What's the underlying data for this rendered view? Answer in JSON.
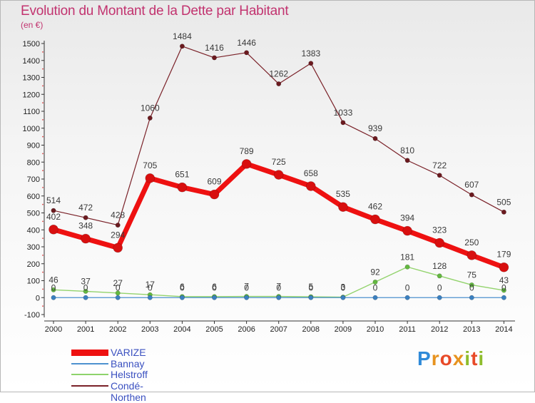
{
  "title": "Evolution du Montant de la Dette par Habitant",
  "unit_label": "(en €)",
  "logo_text": "Proxiti",
  "chart_data": {
    "type": "line",
    "x": [
      "2000",
      "2001",
      "2002",
      "2003",
      "2004",
      "2005",
      "2006",
      "2007",
      "2008",
      "2009",
      "2010",
      "2011",
      "2012",
      "2013",
      "2014"
    ],
    "ylim": [
      -100,
      1500
    ],
    "yticks": [
      -100,
      0,
      100,
      200,
      300,
      400,
      500,
      600,
      700,
      800,
      900,
      1000,
      1100,
      1200,
      1300,
      1400,
      1500
    ],
    "grid": false,
    "legend_position": "bottom-left",
    "series": [
      {
        "name": "VARIZE",
        "color": "#ee1111",
        "values": [
          402,
          348,
          294,
          705,
          651,
          609,
          789,
          725,
          658,
          535,
          462,
          394,
          323,
          250,
          179
        ]
      },
      {
        "name": "Bannay",
        "color": "#4d91cf",
        "values": [
          0,
          0,
          0,
          0,
          0,
          0,
          0,
          0,
          0,
          0,
          0,
          0,
          0,
          0,
          0
        ]
      },
      {
        "name": "Helstroff",
        "color": "#8ed36b",
        "values": [
          46,
          37,
          27,
          17,
          6,
          6,
          7,
          7,
          5,
          3,
          92,
          181,
          128,
          75,
          43
        ]
      },
      {
        "name": "Condé-Northen",
        "color": "#7a2128",
        "values": [
          514,
          472,
          428,
          1060,
          1484,
          1416,
          1446,
          1262,
          1383,
          1033,
          939,
          810,
          722,
          607,
          505
        ]
      }
    ]
  }
}
